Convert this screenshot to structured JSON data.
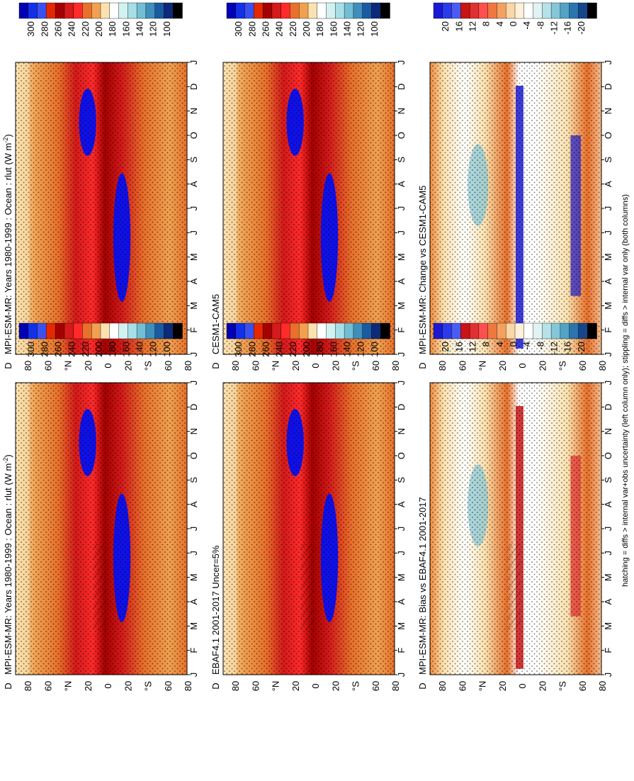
{
  "figure": {
    "footer": "hatching = diffs > internal var+obs uncertainty (left column only); stippling = diffs > internal var only (both columns)"
  },
  "chart_data": [
    {
      "type": "heatmap",
      "title": "MPI-ESM-MR: Years 1980-1999 : Ocean : rlut (W m",
      "title_sup": "-2",
      "title_end": ")",
      "months": [
        "J",
        "F",
        "M",
        "A",
        "M",
        "J",
        "J",
        "A",
        "S",
        "O",
        "N",
        "D",
        "J"
      ],
      "lat_ticks": [
        "D",
        "80",
        "60",
        "°N",
        "20",
        "0",
        "20",
        "°S",
        "60",
        "80"
      ],
      "colorbar": [
        "300",
        "280",
        "260",
        "240",
        "220",
        "200",
        "180",
        "160",
        "140",
        "120",
        "100"
      ],
      "colors": [
        "#0000b4",
        "#1230e6",
        "#3b50f0",
        "#e62800",
        "#a50000",
        "#d41a1a",
        "#ff2a2a",
        "#e8702a",
        "#f0a050",
        "#fbe2b0",
        "#ffffff",
        "#d2f2f2",
        "#a8dfe6",
        "#72bfd5",
        "#3f8fbd",
        "#1a5aa0",
        "#0c2a78",
        "#000000"
      ]
    },
    {
      "type": "heatmap",
      "title": "MPI-ESM-MR: Years 1980-1999 : Ocean : rlut (W m",
      "title_sup": "-2",
      "title_end": ")",
      "months": [
        "J",
        "F",
        "M",
        "A",
        "M",
        "J",
        "J",
        "A",
        "S",
        "O",
        "N",
        "D",
        "J"
      ],
      "lat_ticks": [
        "D",
        "80",
        "60",
        "°N",
        "20",
        "0",
        "20",
        "°S",
        "60",
        "80"
      ],
      "colorbar": [
        "300",
        "280",
        "260",
        "240",
        "220",
        "200",
        "180",
        "160",
        "140",
        "120",
        "100"
      ]
    },
    {
      "type": "heatmap",
      "title": "CESM1-CAM5",
      "months": [
        "J",
        "F",
        "M",
        "A",
        "M",
        "J",
        "J",
        "A",
        "S",
        "O",
        "N",
        "D",
        "J"
      ],
      "lat_ticks": [
        "D",
        "80",
        "60",
        "°N",
        "20",
        "0",
        "20",
        "°S",
        "60",
        "80"
      ],
      "colorbar": [
        "300",
        "280",
        "260",
        "240",
        "220",
        "200",
        "180",
        "160",
        "140",
        "120",
        "100"
      ]
    },
    {
      "type": "heatmap",
      "title": "EBAF4.1 2001-2017 Uncer=5%",
      "months": [
        "J",
        "F",
        "M",
        "A",
        "M",
        "J",
        "J",
        "A",
        "S",
        "O",
        "N",
        "D",
        "J"
      ],
      "lat_ticks": [
        "D",
        "80",
        "60",
        "°N",
        "20",
        "0",
        "20",
        "°S",
        "60",
        "80"
      ],
      "colorbar": [
        "300",
        "280",
        "260",
        "240",
        "220",
        "200",
        "180",
        "160",
        "140",
        "120",
        "100"
      ]
    },
    {
      "type": "heatmap",
      "title": "MPI-ESM-MR: Change vs CESM1-CAM5",
      "months": [
        "J",
        "F",
        "M",
        "A",
        "M",
        "J",
        "J",
        "A",
        "S",
        "O",
        "N",
        "D",
        "J"
      ],
      "lat_ticks": [
        "D",
        "80",
        "60",
        "°N",
        "20",
        "0",
        "20",
        "°S",
        "60",
        "80"
      ],
      "colorbar": [
        "20",
        "16",
        "12",
        "8",
        "4",
        "0",
        "-4",
        "-8",
        "-12",
        "-16",
        "-20"
      ]
    },
    {
      "type": "heatmap",
      "title": "MPI-ESM-MR: Bias vs EBAF4.1 2001-2017",
      "months": [
        "J",
        "F",
        "M",
        "A",
        "M",
        "J",
        "J",
        "A",
        "S",
        "O",
        "N",
        "D",
        "J"
      ],
      "lat_ticks": [
        "D",
        "80",
        "60",
        "°N",
        "20",
        "0",
        "20",
        "°S",
        "60",
        "80"
      ],
      "colorbar": [
        "20",
        "16",
        "12",
        "8",
        "4",
        "0",
        "-4",
        "-8",
        "-12",
        "-16",
        "-20"
      ]
    }
  ]
}
